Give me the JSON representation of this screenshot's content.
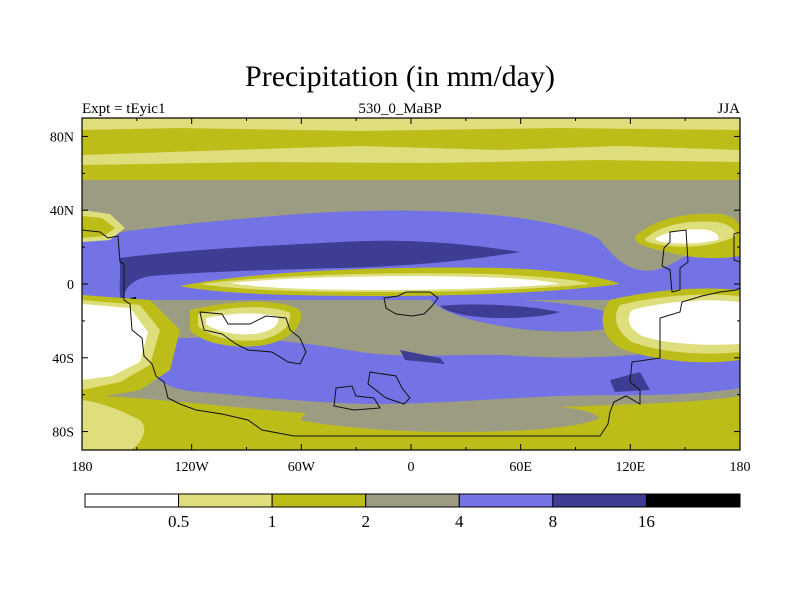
{
  "chart_data": {
    "type": "heatmap",
    "title": "Precipitation (in mm/day)",
    "left_label": "Expt = tEyic1",
    "center_label": "530_0_MaBP",
    "right_label": "JJA",
    "x_ticks": [
      "180",
      "120W",
      "60W",
      "0",
      "60E",
      "120E",
      "180"
    ],
    "y_ticks": [
      "80N",
      "40N",
      "0",
      "40S",
      "80S"
    ],
    "xlim": [
      -180,
      180
    ],
    "ylim": [
      -90,
      90
    ],
    "colorbar": {
      "levels": [
        "0.5",
        "1",
        "2",
        "4",
        "8",
        "16"
      ],
      "colors": [
        "#ffffff",
        "#dede7c",
        "#bdbd1a",
        "#9c9c82",
        "#7373e6",
        "#3d3d94",
        "#000000"
      ]
    },
    "approx_zonal_bands": [
      {
        "lat_range": [
          60,
          90
        ],
        "class": "1-2 mm/day"
      },
      {
        "lat_range": [
          30,
          60
        ],
        "class": "2-4 mm/day"
      },
      {
        "lat_range": [
          5,
          25
        ],
        "class": "4-8 mm/day with 8-16 core over Pacific"
      },
      {
        "lat_range": [
          -5,
          5
        ],
        "class": "<0.5 mm/day dry equatorial band"
      },
      {
        "lat_range": [
          -30,
          -5
        ],
        "class": "2-4 mm/day"
      },
      {
        "lat_range": [
          -50,
          -30
        ],
        "class": "4-8 mm/day"
      },
      {
        "lat_range": [
          -90,
          -60
        ],
        "class": "1-2 mm/day"
      }
    ]
  }
}
